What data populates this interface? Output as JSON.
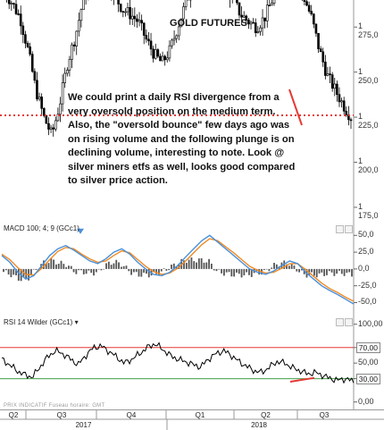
{
  "chart_data": [
    {
      "type": "candlestick",
      "title": "GOLD FUTURES",
      "y_ticks": [
        "1 275,0",
        "1 250,0",
        "1 225,0",
        "1 200,0",
        "1 175,0"
      ],
      "y_tick_values": [
        1275,
        1250,
        1225,
        1200,
        1175
      ],
      "ylim": [
        1168,
        1290
      ],
      "reference_line": {
        "value": 1226,
        "style": "dotted",
        "color": "#e53935"
      },
      "approx_close_path": [
        1295,
        1288,
        1280,
        1262,
        1240,
        1225,
        1215,
        1232,
        1255,
        1270,
        1290,
        1300,
        1305,
        1300,
        1292,
        1285,
        1282,
        1278,
        1268,
        1260,
        1255,
        1262,
        1275,
        1288,
        1300,
        1310,
        1310,
        1305,
        1298,
        1290,
        1282,
        1278,
        1275,
        1280,
        1290,
        1300,
        1305,
        1300,
        1292,
        1280,
        1262,
        1248,
        1240,
        1232,
        1225
      ]
    },
    {
      "type": "line",
      "title": "MACD 100; 4; 9 (GCc1)",
      "y_ticks": [
        "50,0",
        "25,0",
        "0,0",
        "-25,0",
        "-50,0"
      ],
      "y_tick_values": [
        50,
        25,
        0,
        -25,
        -50
      ],
      "ylim": [
        -60,
        65
      ],
      "series": [
        {
          "name": "MACD",
          "values": [
            20,
            10,
            -5,
            -15,
            -10,
            5,
            20,
            30,
            35,
            28,
            20,
            12,
            8,
            15,
            25,
            30,
            22,
            10,
            0,
            -8,
            -10,
            -5,
            5,
            18,
            30,
            42,
            50,
            40,
            30,
            20,
            10,
            0,
            -5,
            -8,
            -3,
            5,
            12,
            8,
            -5,
            -15,
            -25,
            -32,
            -38,
            -45,
            -52
          ]
        },
        {
          "name": "Signal",
          "values": [
            22,
            14,
            2,
            -8,
            -9,
            1,
            14,
            26,
            32,
            30,
            22,
            15,
            10,
            12,
            20,
            27,
            24,
            14,
            4,
            -4,
            -8,
            -6,
            1,
            12,
            24,
            36,
            45,
            42,
            33,
            24,
            14,
            4,
            -2,
            -6,
            -5,
            1,
            8,
            8,
            -1,
            -11,
            -21,
            -29,
            -35,
            -42,
            -48
          ]
        }
      ]
    },
    {
      "type": "line",
      "title": "RSI 14 Wilder (GCc1)",
      "y_ticks": [
        "100,00",
        "70,00",
        "50,00",
        "30,00",
        "0,00"
      ],
      "y_tick_values": [
        100,
        70,
        50,
        30,
        0
      ],
      "ylim": [
        -5,
        110
      ],
      "levels": [
        {
          "value": 70,
          "label": "70,00",
          "color": "#e53935"
        },
        {
          "value": 30,
          "label": "30,00",
          "color": "#43a047"
        }
      ],
      "series": [
        {
          "name": "RSI",
          "values": [
            55,
            48,
            40,
            35,
            32,
            45,
            58,
            66,
            62,
            55,
            48,
            60,
            70,
            72,
            65,
            58,
            50,
            55,
            62,
            70,
            75,
            68,
            60,
            55,
            52,
            48,
            45,
            55,
            62,
            66,
            60,
            52,
            46,
            40,
            38,
            45,
            52,
            50,
            44,
            40,
            36,
            38,
            34,
            30,
            28,
            30,
            26
          ]
        }
      ]
    }
  ],
  "annotation": "We could print a daily RSI divergence from a very oversold position on the medium term. Also, the \"oversold bounce\" few days ago was on rising volume and the following plunge is on declining volume, interesting to note. Look @ silver miners etfs as well, looks good compared to silver price action.",
  "watermark": "PRIX INDICATIF  Fuseau horaire: GMT",
  "time_axis": {
    "quarters": [
      "Q2",
      "Q3",
      "Q4",
      "Q1",
      "Q2",
      "Q3"
    ],
    "years": [
      "2017",
      "2018"
    ]
  },
  "colors": {
    "candle": "#000000",
    "macd": "#4a90d9",
    "signal": "#f08a24",
    "rsi": "#000000",
    "red": "#e53935",
    "green": "#43a047"
  }
}
